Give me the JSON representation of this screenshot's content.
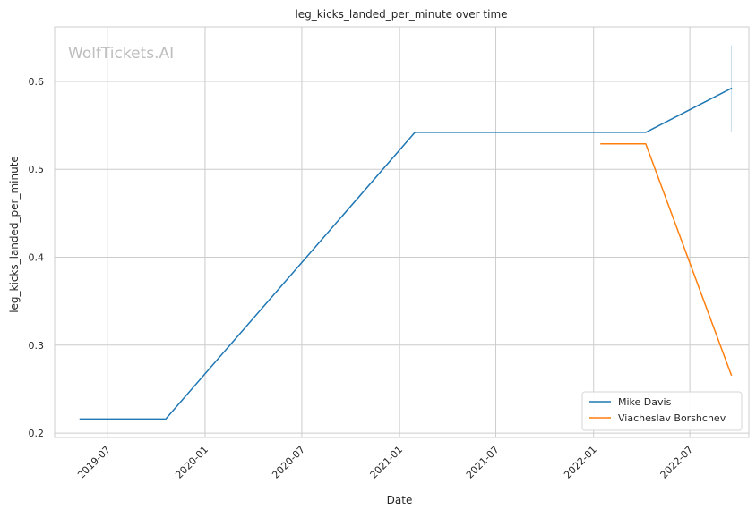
{
  "chart_data": {
    "type": "line",
    "title": "leg_kicks_landed_per_minute over time",
    "xlabel": "Date",
    "ylabel": "leg_kicks_landed_per_minute",
    "x_ticks": [
      "2019-07",
      "2020-01",
      "2020-07",
      "2021-01",
      "2021-07",
      "2022-01",
      "2022-07"
    ],
    "y_ticks": [
      "0.2",
      "0.3",
      "0.4",
      "0.5",
      "0.6"
    ],
    "xlim": [
      "2019-03-24",
      "2022-10-20"
    ],
    "ylim": [
      0.195,
      0.662
    ],
    "grid": true,
    "legend_position": "bottom-right",
    "series": [
      {
        "name": "Mike Davis",
        "color": "#1f77b4",
        "points": [
          {
            "x": "2019-05-11",
            "y": 0.216
          },
          {
            "x": "2019-10-19",
            "y": 0.216
          },
          {
            "x": "2021-01-30",
            "y": 0.542
          },
          {
            "x": "2022-04-09",
            "y": 0.542
          },
          {
            "x": "2022-09-17",
            "y": 0.592
          }
        ]
      },
      {
        "name": "Viacheslav Borshchev",
        "color": "#ff7f0e",
        "points": [
          {
            "x": "2022-01-15",
            "y": 0.529
          },
          {
            "x": "2022-04-09",
            "y": 0.529
          },
          {
            "x": "2022-09-17",
            "y": 0.266
          }
        ]
      }
    ],
    "error_bar": {
      "x": "2022-09-17",
      "y_low": 0.542,
      "y_high": 0.641,
      "color": "#1f77b4"
    }
  },
  "watermark": "WolfTickets.AI"
}
